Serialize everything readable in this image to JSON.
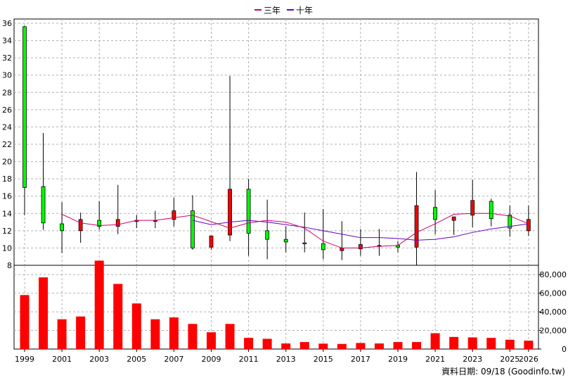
{
  "chart_data": {
    "type": "candlestick",
    "legend": [
      {
        "name": "三年",
        "color": "#cc0066"
      },
      {
        "name": "十年",
        "color": "#6600cc"
      }
    ],
    "footer": "資料日期: 09/18 (Goodinfo.tw)",
    "x_ticks": [
      "1999",
      "2001",
      "2003",
      "2005",
      "2007",
      "2009",
      "2011",
      "2013",
      "2015",
      "2017",
      "2019",
      "2021",
      "2023",
      "2025",
      "2026"
    ],
    "price_axis": {
      "ylim": [
        8,
        36
      ],
      "ticks": [
        "36",
        "34",
        "32",
        "30",
        "28",
        "26",
        "24",
        "22",
        "20",
        "18",
        "16",
        "14",
        "12",
        "10",
        "8"
      ],
      "grid": true
    },
    "volume_axis": {
      "ylim": [
        0,
        90000
      ],
      "ticks": [
        "80,000",
        "60,000",
        "40,000",
        "20,000",
        "0"
      ]
    },
    "colors": {
      "up": "#ff0000",
      "down": "#00ff00",
      "volume": "#ff0000",
      "grid": "#b0b0b0"
    },
    "years": [
      "1999",
      "2000",
      "2001",
      "2002",
      "2003",
      "2004",
      "2005",
      "2006",
      "2007",
      "2008",
      "2009",
      "2010",
      "2011",
      "2012",
      "2013",
      "2014",
      "2015",
      "2016",
      "2017",
      "2018",
      "2019",
      "2020",
      "2021",
      "2022",
      "2023",
      "2024",
      "2025",
      "2026"
    ],
    "ohlc": [
      {
        "o": 35.6,
        "h": 35.7,
        "l": 13.8,
        "c": 17.0
      },
      {
        "o": 17.1,
        "h": 23.3,
        "l": 12.1,
        "c": 12.9
      },
      {
        "o": 12.8,
        "h": 15.3,
        "l": 9.4,
        "c": 12.0
      },
      {
        "o": 12.0,
        "h": 14.1,
        "l": 10.6,
        "c": 13.3
      },
      {
        "o": 13.2,
        "h": 15.4,
        "l": 12.1,
        "c": 12.5
      },
      {
        "o": 12.5,
        "h": 17.3,
        "l": 11.6,
        "c": 13.3
      },
      {
        "o": 13.2,
        "h": 13.8,
        "l": 12.3,
        "c": 13.2
      },
      {
        "o": 13.2,
        "h": 14.3,
        "l": 12.3,
        "c": 13.2
      },
      {
        "o": 13.3,
        "h": 15.8,
        "l": 12.5,
        "c": 14.3
      },
      {
        "o": 14.3,
        "h": 16.1,
        "l": 9.8,
        "c": 10.0
      },
      {
        "o": 10.1,
        "h": 11.4,
        "l": 9.8,
        "c": 11.4
      },
      {
        "o": 11.5,
        "h": 29.9,
        "l": 10.8,
        "c": 16.8
      },
      {
        "o": 16.8,
        "h": 18.0,
        "l": 9.1,
        "c": 11.7
      },
      {
        "o": 12.0,
        "h": 15.6,
        "l": 8.7,
        "c": 11.0
      },
      {
        "o": 11.0,
        "h": 12.5,
        "l": 9.5,
        "c": 10.7
      },
      {
        "o": 10.6,
        "h": 14.1,
        "l": 9.5,
        "c": 10.5
      },
      {
        "o": 10.5,
        "h": 14.5,
        "l": 8.7,
        "c": 9.8
      },
      {
        "o": 9.7,
        "h": 13.1,
        "l": 8.6,
        "c": 10.0
      },
      {
        "o": 9.9,
        "h": 12.2,
        "l": 9.1,
        "c": 10.4
      },
      {
        "o": 10.3,
        "h": 12.2,
        "l": 9.1,
        "c": 10.3
      },
      {
        "o": 10.3,
        "h": 10.8,
        "l": 9.5,
        "c": 10.1
      },
      {
        "o": 10.1,
        "h": 18.8,
        "l": 8.0,
        "c": 14.9
      },
      {
        "o": 14.7,
        "h": 16.7,
        "l": 11.6,
        "c": 13.3
      },
      {
        "o": 13.2,
        "h": 13.5,
        "l": 11.5,
        "c": 13.6
      },
      {
        "o": 13.8,
        "h": 17.9,
        "l": 12.4,
        "c": 15.5
      },
      {
        "o": 15.4,
        "h": 15.7,
        "l": 12.5,
        "c": 13.4
      },
      {
        "o": 13.8,
        "h": 14.9,
        "l": 11.3,
        "c": 12.3
      },
      {
        "o": 12.0,
        "h": 14.9,
        "l": 11.4,
        "c": 13.3
      }
    ],
    "ma3": [
      null,
      null,
      13.9,
      12.9,
      12.6,
      12.7,
      13.2,
      13.2,
      13.5,
      13.8,
      null,
      12.3,
      12.9,
      13.2,
      13.0,
      12.3,
      10.8,
      10.0,
      10.0,
      10.2,
      10.3,
      11.8,
      12.8,
      13.9,
      14.0,
      14.0,
      13.7,
      12.8
    ],
    "ma10": [
      null,
      null,
      null,
      null,
      null,
      null,
      null,
      null,
      null,
      13.2,
      12.7,
      13.0,
      13.2,
      13.0,
      12.7,
      12.4,
      12.0,
      11.6,
      11.2,
      11.2,
      11.1,
      10.9,
      11.0,
      11.3,
      11.8,
      12.2,
      12.5,
      12.8
    ],
    "volume": [
      58000,
      77000,
      32000,
      35000,
      95000,
      70000,
      49000,
      32000,
      34000,
      27000,
      18000,
      27000,
      12000,
      11000,
      6000,
      7500,
      5800,
      5500,
      6500,
      6000,
      7500,
      7500,
      17000,
      13000,
      12500,
      12000,
      10000,
      9000
    ]
  }
}
